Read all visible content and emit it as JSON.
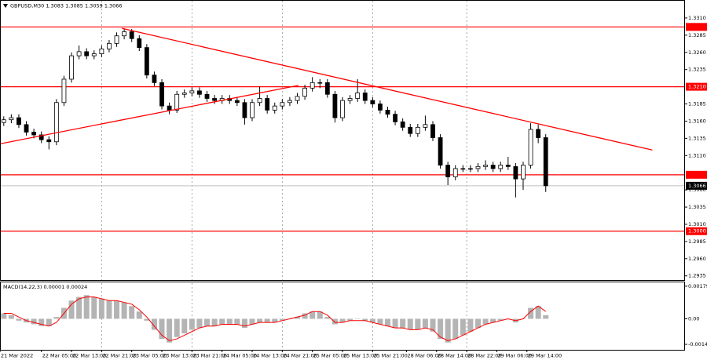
{
  "chart_data": [
    {
      "type": "candlestick",
      "title": "GBPUSD,M30",
      "info_values": [
        1.3083,
        1.3085,
        1.3059,
        1.3066
      ],
      "color": "#000000",
      "x": [
        2,
        4,
        6,
        8,
        10,
        12,
        14,
        16,
        18,
        20,
        22,
        24,
        26,
        28,
        30,
        32,
        34,
        36,
        38,
        40,
        42,
        44,
        46,
        48,
        50,
        52,
        54,
        56,
        58,
        60,
        62,
        64,
        66,
        68,
        70,
        72,
        74,
        76,
        78,
        80,
        82,
        84,
        86,
        88,
        90,
        92,
        94,
        96,
        98,
        100,
        102,
        104,
        106,
        108,
        110,
        112,
        114,
        116,
        118,
        120,
        122,
        124,
        126,
        128,
        130,
        132,
        134,
        136,
        138,
        140,
        142,
        144,
        146
      ],
      "open": [
        1.3158,
        1.3162,
        1.3165,
        1.3155,
        1.3144,
        1.314,
        1.3133,
        1.313,
        1.3187,
        1.3221,
        1.3255,
        1.3261,
        1.3255,
        1.3258,
        1.3265,
        1.3273,
        1.3284,
        1.329,
        1.328,
        1.3267,
        1.3227,
        1.3216,
        1.3182,
        1.3176,
        1.3199,
        1.3201,
        1.3204,
        1.3199,
        1.3193,
        1.319,
        1.3193,
        1.319,
        1.3187,
        1.3165,
        1.3187,
        1.3193,
        1.3176,
        1.3182,
        1.3187,
        1.319,
        1.3196,
        1.3208,
        1.3216,
        1.3216,
        1.3199,
        1.3165,
        1.319,
        1.3193,
        1.3201,
        1.319,
        1.3185,
        1.3176,
        1.317,
        1.3159,
        1.3151,
        1.3142,
        1.3151,
        1.3155,
        1.3136,
        1.3096,
        1.3079,
        1.3091,
        1.3091,
        1.3091,
        1.3094,
        1.3096,
        1.3091,
        1.3096,
        1.3094,
        1.3076,
        1.3096,
        1.3148,
        1.3136
      ],
      "high": [
        1.3167,
        1.317,
        1.317,
        1.316,
        1.3149,
        1.3145,
        1.3138,
        1.3192,
        1.3226,
        1.326,
        1.327,
        1.3266,
        1.3263,
        1.327,
        1.3278,
        1.3289,
        1.3295,
        1.3294,
        1.3285,
        1.3272,
        1.3232,
        1.3221,
        1.3187,
        1.3204,
        1.3206,
        1.3209,
        1.3209,
        1.3204,
        1.3198,
        1.3198,
        1.3198,
        1.3195,
        1.3192,
        1.3192,
        1.321,
        1.3198,
        1.3187,
        1.3192,
        1.3195,
        1.3201,
        1.3213,
        1.3224,
        1.3221,
        1.3221,
        1.3204,
        1.3195,
        1.3198,
        1.3221,
        1.3206,
        1.3195,
        1.319,
        1.3181,
        1.3175,
        1.3164,
        1.3156,
        1.3156,
        1.3168,
        1.316,
        1.3141,
        1.3101,
        1.3096,
        1.3096,
        1.3096,
        1.3099,
        1.3103,
        1.3101,
        1.3101,
        1.3108,
        1.3099,
        1.3101,
        1.3157,
        1.3155,
        1.3141
      ],
      "low": [
        1.3153,
        1.3157,
        1.315,
        1.3139,
        1.3135,
        1.3128,
        1.3119,
        1.3125,
        1.3182,
        1.3216,
        1.325,
        1.325,
        1.325,
        1.3253,
        1.326,
        1.3268,
        1.3279,
        1.3275,
        1.3262,
        1.3222,
        1.3211,
        1.3177,
        1.317,
        1.3172,
        1.3194,
        1.3196,
        1.3194,
        1.3188,
        1.3185,
        1.3185,
        1.3185,
        1.3182,
        1.3155,
        1.316,
        1.3182,
        1.3171,
        1.3171,
        1.3177,
        1.3182,
        1.3185,
        1.3191,
        1.3203,
        1.3208,
        1.3194,
        1.3158,
        1.316,
        1.3185,
        1.3188,
        1.3185,
        1.318,
        1.3171,
        1.3165,
        1.3154,
        1.3146,
        1.3137,
        1.3137,
        1.3146,
        1.3131,
        1.3091,
        1.3067,
        1.3074,
        1.3086,
        1.3086,
        1.3086,
        1.3089,
        1.3086,
        1.3086,
        1.3089,
        1.3049,
        1.306,
        1.3091,
        1.3128,
        1.3057
      ],
      "close": [
        1.3162,
        1.3165,
        1.3155,
        1.3144,
        1.314,
        1.3133,
        1.313,
        1.3187,
        1.3221,
        1.3255,
        1.3261,
        1.3255,
        1.3258,
        1.3265,
        1.3273,
        1.3284,
        1.329,
        1.328,
        1.3267,
        1.3227,
        1.3216,
        1.3182,
        1.3176,
        1.3199,
        1.3201,
        1.3204,
        1.3199,
        1.3193,
        1.319,
        1.3193,
        1.319,
        1.3187,
        1.3165,
        1.3187,
        1.3193,
        1.3176,
        1.3182,
        1.3187,
        1.319,
        1.3196,
        1.3208,
        1.3216,
        1.3216,
        1.3199,
        1.3165,
        1.319,
        1.3193,
        1.3201,
        1.319,
        1.3185,
        1.3176,
        1.317,
        1.3159,
        1.3151,
        1.3142,
        1.3151,
        1.3155,
        1.3136,
        1.3096,
        1.3079,
        1.3091,
        1.3091,
        1.3091,
        1.3094,
        1.3096,
        1.3091,
        1.3096,
        1.3094,
        1.3076,
        1.3096,
        1.3148,
        1.3136,
        1.3066
      ],
      "xlim": [
        1,
        183
      ],
      "ylim": [
        1.2929,
        1.3335
      ],
      "yticks": [
        {
          "value": 1.331,
          "label": "1.3310"
        },
        1.3285,
        {
          "value": 1.326,
          "label": "1.3260"
        },
        1.3235,
        1.3185,
        {
          "value": 1.316,
          "label": "1.3160"
        },
        1.3135,
        {
          "value": 1.311,
          "label": "1.3110"
        },
        {
          "value": 1.306,
          "label": "1.3060"
        },
        1.3035,
        {
          "value": 1.301,
          "label": "1.3010"
        },
        1.2985,
        {
          "value": 1.296,
          "label": "1.2960"
        },
        1.2935
      ],
      "levels": [
        {
          "value": 1.3297
        },
        {
          "value": 1.321,
          "label": "1.3210"
        },
        {
          "value": 1.3082
        },
        {
          "value": 1.3,
          "label": "1.3000"
        }
      ],
      "level_color": "#ff0000",
      "last_price": 1.3066,
      "last_price_color": "#c0c0c0",
      "trendlines": [
        {
          "x": [
            33.4,
            174.3
          ],
          "y": [
            1.3295,
            1.3118
          ]
        },
        {
          "x": [
            1,
            80.3
          ],
          "y": [
            1.3127,
            1.3212
          ]
        }
      ],
      "trendline_color": "#ff0000"
    },
    {
      "type": "macd",
      "title": "MACD(14,22,3)",
      "info_values": [
        1e-05,
        0.00024
      ],
      "histogram_color": "#b4b4b4",
      "signal_color": "#ff0000",
      "x": [
        2,
        4,
        6,
        8,
        10,
        12,
        14,
        16,
        18,
        20,
        22,
        24,
        26,
        28,
        30,
        32,
        34,
        36,
        38,
        40,
        42,
        44,
        46,
        48,
        50,
        52,
        54,
        56,
        58,
        60,
        62,
        64,
        66,
        68,
        70,
        72,
        74,
        76,
        78,
        80,
        82,
        84,
        86,
        88,
        90,
        92,
        94,
        96,
        98,
        100,
        102,
        104,
        106,
        108,
        110,
        112,
        114,
        116,
        118,
        120,
        122,
        124,
        126,
        128,
        130,
        132,
        134,
        136,
        138,
        140,
        142,
        144,
        146
      ],
      "histogram": [
        0.0003,
        0.0002,
        -0.0001,
        -0.0002,
        -0.0003,
        -0.0004,
        -0.0004,
        0.0001,
        0.0006,
        0.001,
        0.0012,
        0.0013,
        0.0012,
        0.0011,
        0.001,
        0.001,
        0.0009,
        0.0007,
        0.0004,
        -0.0001,
        -0.0006,
        -0.0011,
        -0.0013,
        -0.001,
        -0.0008,
        -0.0006,
        -0.0005,
        -0.0004,
        -0.0004,
        -0.0003,
        -0.0003,
        -0.0003,
        -0.0005,
        -0.0003,
        -0.0002,
        -0.0002,
        -0.0002,
        -0.0001,
        0,
        0.0001,
        0.0003,
        0.0004,
        0.0004,
        0.0001,
        -0.0003,
        -0.0002,
        -0.0001,
        0,
        -0.0001,
        -0.0002,
        -0.0003,
        -0.0004,
        -0.0005,
        -0.0005,
        -0.0006,
        -0.0006,
        -0.0005,
        -0.0007,
        -0.0011,
        -0.0013,
        -0.0011,
        -0.0009,
        -0.0007,
        -0.0005,
        -0.0003,
        -0.0002,
        -0.0001,
        0,
        -0.0002,
        0,
        0.0006,
        0.0007,
        0.0002
      ],
      "signal": [
        0.0003,
        0.0003,
        0.0001,
        -0.0001,
        -0.0002,
        -0.0003,
        -0.0004,
        -0.0002,
        0.0003,
        0.0008,
        0.0011,
        0.0012,
        0.0012,
        0.0011,
        0.001,
        0.001,
        0.0009,
        0.0008,
        0.0005,
        0.0001,
        -0.0004,
        -0.0009,
        -0.0012,
        -0.0011,
        -0.0009,
        -0.0007,
        -0.0005,
        -0.0004,
        -0.0004,
        -0.0003,
        -0.0003,
        -0.0003,
        -0.0004,
        -0.0003,
        -0.0002,
        -0.0002,
        -0.0002,
        -0.0001,
        0,
        0.0001,
        0.0002,
        0.0004,
        0.0004,
        0.0002,
        -0.0002,
        -0.0002,
        -0.0001,
        -0.0001,
        -0.0001,
        -0.0002,
        -0.0003,
        -0.0004,
        -0.0005,
        -0.0005,
        -0.0006,
        -0.0006,
        -0.0005,
        -0.0006,
        -0.001,
        -0.0012,
        -0.0011,
        -0.0009,
        -0.0007,
        -0.0005,
        -0.0003,
        -0.0002,
        -0.0001,
        0,
        -0.0001,
        0,
        0.0004,
        0.0007,
        0.0004
      ],
      "xlim": [
        1,
        183
      ],
      "ylim": [
        -0.0017,
        0.002
      ],
      "yticks": [
        0.00179,
        {
          "value": 0,
          "label": "0.00"
        },
        -0.0014
      ],
      "xticks": [
        {
          "value": 1,
          "label": "21 Mar 2022"
        },
        {
          "value": 12,
          "label": "22 Mar 05:00"
        },
        {
          "value": 20,
          "label": "22 Mar 13:00"
        },
        {
          "value": 28,
          "label": "22 Mar 21:00"
        },
        {
          "value": 36,
          "label": "23 Mar 05:00"
        },
        {
          "value": 44,
          "label": "23 Mar 13:00"
        },
        {
          "value": 52,
          "label": "23 Mar 21:00"
        },
        {
          "value": 60,
          "label": "24 Mar 05:00"
        },
        {
          "value": 68,
          "label": "24 Mar 13:00"
        },
        {
          "value": 76,
          "label": "24 Mar 21:00"
        },
        {
          "value": 84,
          "label": "25 Mar 05:00"
        },
        {
          "value": 92,
          "label": "25 Mar 13:00"
        },
        {
          "value": 100,
          "label": "25 Mar 21:00"
        },
        {
          "value": 109,
          "label": "28 Mar 06:00"
        },
        {
          "value": 117,
          "label": "28 Mar 14:00"
        },
        {
          "value": 125,
          "label": "28 Mar 22:00"
        },
        {
          "value": 133,
          "label": "29 Mar 06:00"
        },
        {
          "value": 141,
          "label": "29 Mar 14:00"
        }
      ]
    }
  ]
}
